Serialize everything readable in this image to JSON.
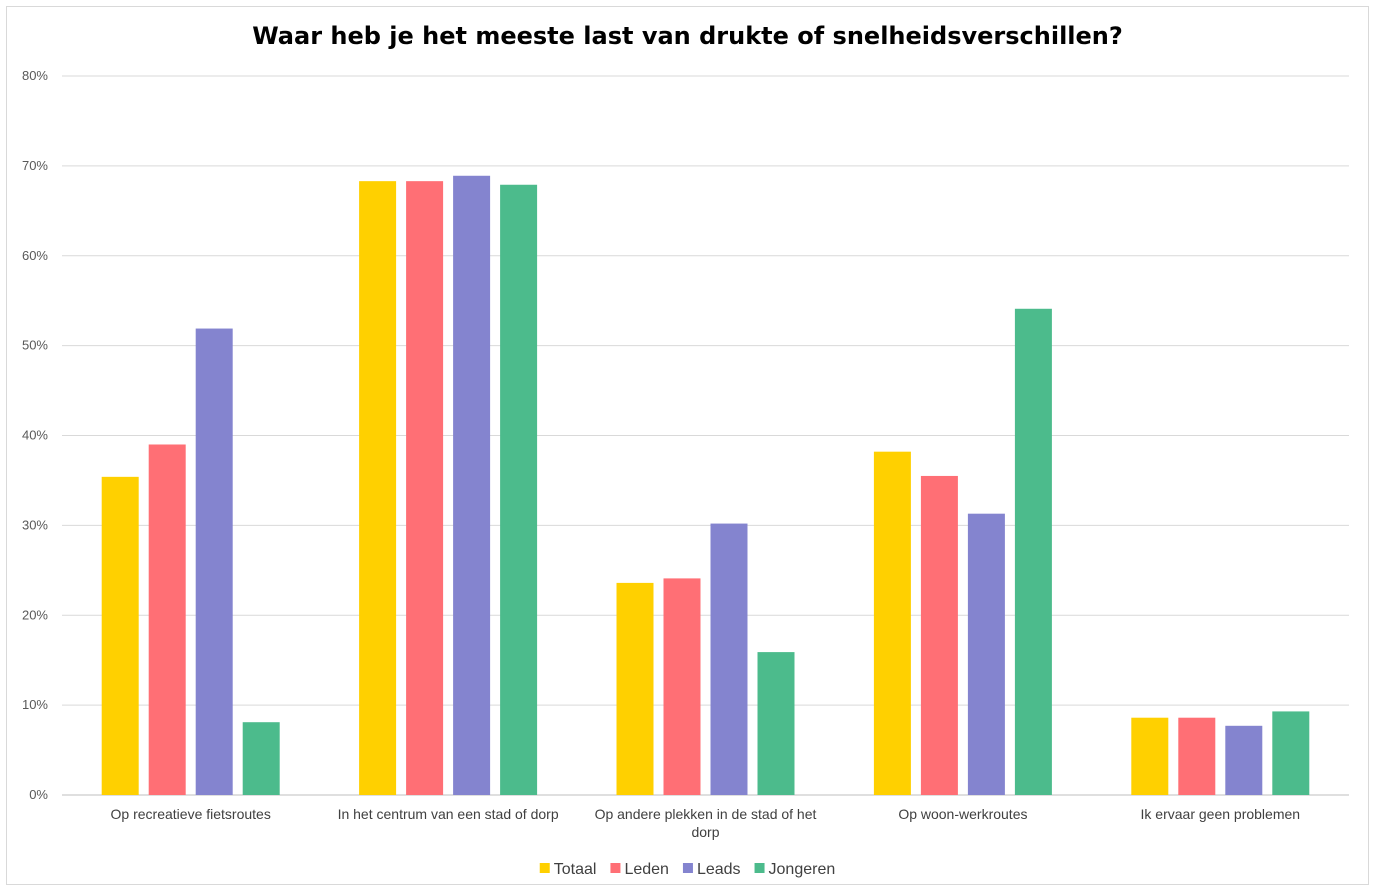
{
  "chart_data": {
    "type": "bar",
    "title": "Waar heb je het meeste last van drukte of snelheidsverschillen?",
    "categories": [
      [
        "Op recreatieve fietsroutes"
      ],
      [
        "In het centrum van een stad of dorp"
      ],
      [
        "Op andere plekken in de stad of het",
        "dorp"
      ],
      [
        "Op woon-werkroutes"
      ],
      [
        "Ik ervaar geen problemen"
      ]
    ],
    "series": [
      {
        "name": "Totaal",
        "color": "#FFD000",
        "values": [
          35.4,
          68.3,
          23.6,
          38.2,
          8.6
        ]
      },
      {
        "name": "Leden",
        "color": "#FF6F75",
        "values": [
          39.0,
          68.3,
          24.1,
          35.5,
          8.6
        ]
      },
      {
        "name": "Leads",
        "color": "#8484CF",
        "values": [
          51.9,
          68.9,
          30.2,
          31.3,
          7.7
        ]
      },
      {
        "name": "Jongeren",
        "color": "#4CBB8C",
        "values": [
          8.1,
          67.9,
          15.9,
          54.1,
          9.3
        ]
      }
    ],
    "yticks": [
      "0%",
      "10%",
      "20%",
      "30%",
      "40%",
      "50%",
      "60%",
      "70%",
      "80%"
    ],
    "ylim": [
      0,
      80
    ],
    "grid": true,
    "legend": "bottom"
  }
}
